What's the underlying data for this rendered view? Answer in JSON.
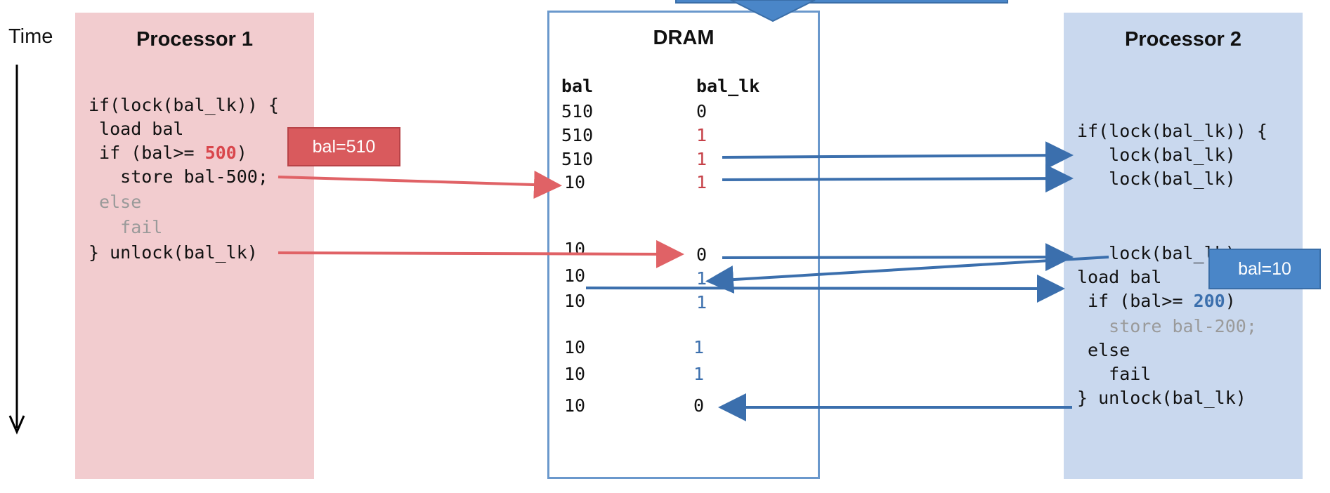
{
  "time_label": "Time",
  "processor1": {
    "title": "Processor 1",
    "code": {
      "l1": "if(lock(bal_lk)) {",
      "l2": " load bal",
      "l3_pre": " if (bal>= ",
      "l3_val": "500",
      "l3_post": ")",
      "l4": "   store bal-500;",
      "l5": " else",
      "l6": "   fail",
      "l7": "} unlock(bal_lk)"
    },
    "callout": "bal=510"
  },
  "dram": {
    "title": "DRAM",
    "col_bal": "bal",
    "col_lk": "bal_lk",
    "rows": [
      {
        "bal": "510",
        "lk": "0"
      },
      {
        "bal": "510",
        "lk": "1"
      },
      {
        "bal": "510",
        "lk": "1"
      },
      {
        "bal": "10",
        "lk": "1"
      },
      {
        "bal": "10",
        "lk": "0"
      },
      {
        "bal": "10",
        "lk": "1"
      },
      {
        "bal": "10",
        "lk": "1"
      },
      {
        "bal": "10",
        "lk": "1"
      },
      {
        "bal": "10",
        "lk": "1"
      },
      {
        "bal": "10",
        "lk": "0"
      }
    ]
  },
  "processor2": {
    "title": "Processor 2",
    "code": {
      "l1": "if(lock(bal_lk)) {",
      "l2": "   lock(bal_lk)",
      "l3": "   lock(bal_lk)",
      "l4": "   lock(bal_lk)",
      "l5": "load bal",
      "l6_pre": " if (bal>= ",
      "l6_val": "200",
      "l6_post": ")",
      "l7": "   store bal-200;",
      "l8": " else",
      "l9": "   fail",
      "l10": "} unlock(bal_lk)"
    },
    "callout": "bal=10"
  },
  "colors": {
    "processor1_bg": "#f2cccf",
    "processor2_bg": "#c9d8ee",
    "dram_border": "#6a98cc",
    "red_arrow": "#e06266",
    "blue_arrow": "#3b6fad",
    "highlight_red": "#d9464c",
    "highlight_blue": "#3b6fad"
  }
}
